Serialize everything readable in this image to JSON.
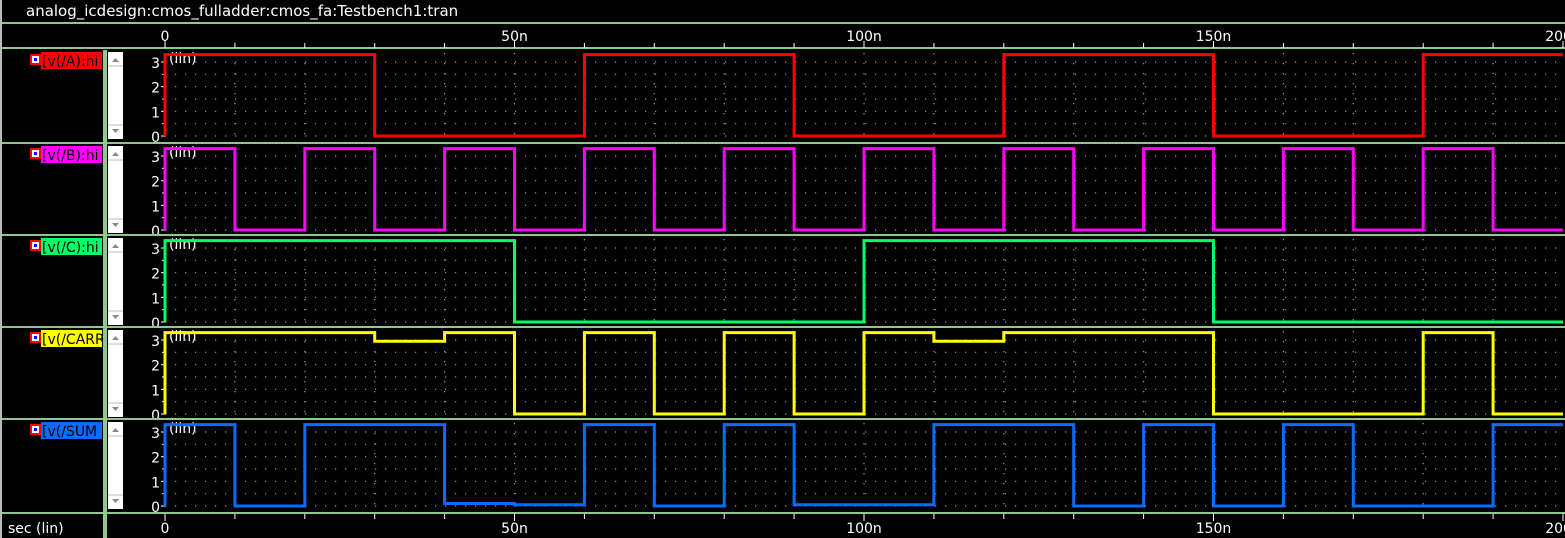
{
  "window": {
    "title": "analog_icdesign:cmos_fulladder:cmos_fa:Testbench1:tran"
  },
  "x_axis": {
    "label": "sec (lin)",
    "ticks": [
      "0",
      "50n",
      "100n",
      "150n",
      "200n"
    ]
  },
  "colors": {
    "divider": "#8fc78f",
    "grid": "#9a9a9a",
    "background": "#000000"
  },
  "chart_data": {
    "type": "line",
    "xlabel": "sec (lin)",
    "xlim": [
      0,
      200
    ],
    "x_unit": "ns",
    "x_ticks": [
      "0",
      "50n",
      "100n",
      "150n",
      "200n"
    ],
    "ylim": [
      0,
      3.3
    ],
    "y_ticks": [
      "0",
      "1",
      "2",
      "3"
    ],
    "y_scale_label": "(lin)",
    "grid": true,
    "series": [
      {
        "name": "v(/A):hi",
        "color": "#ff0000",
        "steps": [
          [
            0,
            3.3
          ],
          [
            30,
            0
          ],
          [
            60,
            3.3
          ],
          [
            90,
            0
          ],
          [
            120,
            3.3
          ],
          [
            150,
            0
          ],
          [
            180,
            3.3
          ],
          [
            200,
            3.3
          ]
        ]
      },
      {
        "name": "v(/B):hi",
        "color": "#ff00ff",
        "steps": [
          [
            0,
            3.3
          ],
          [
            10,
            0
          ],
          [
            20,
            3.3
          ],
          [
            30,
            0
          ],
          [
            40,
            3.3
          ],
          [
            50,
            0
          ],
          [
            60,
            3.3
          ],
          [
            70,
            0
          ],
          [
            80,
            3.3
          ],
          [
            90,
            0
          ],
          [
            100,
            3.3
          ],
          [
            110,
            0
          ],
          [
            120,
            3.3
          ],
          [
            130,
            0
          ],
          [
            140,
            3.3
          ],
          [
            150,
            0
          ],
          [
            160,
            3.3
          ],
          [
            170,
            0
          ],
          [
            180,
            3.3
          ],
          [
            190,
            0
          ],
          [
            200,
            0
          ]
        ]
      },
      {
        "name": "v(/C):hi",
        "color": "#00ff66",
        "steps": [
          [
            0,
            3.3
          ],
          [
            50,
            0
          ],
          [
            100,
            3.3
          ],
          [
            150,
            0
          ],
          [
            200,
            0
          ]
        ]
      },
      {
        "name": "v(/CARRY",
        "color": "#ffff00",
        "steps": [
          [
            0,
            3.3
          ],
          [
            30,
            2.95
          ],
          [
            40,
            3.3
          ],
          [
            50,
            0
          ],
          [
            60,
            3.3
          ],
          [
            70,
            0
          ],
          [
            80,
            3.3
          ],
          [
            90,
            0
          ],
          [
            100,
            3.3
          ],
          [
            110,
            2.95
          ],
          [
            120,
            3.3
          ],
          [
            150,
            0
          ],
          [
            180,
            3.3
          ],
          [
            190,
            0
          ],
          [
            200,
            0
          ]
        ]
      },
      {
        "name": "v(/SUM",
        "color": "#0a6cff",
        "steps": [
          [
            0,
            3.3
          ],
          [
            10,
            0
          ],
          [
            20,
            3.3
          ],
          [
            40,
            0.1
          ],
          [
            50,
            0.05
          ],
          [
            60,
            3.3
          ],
          [
            70,
            0
          ],
          [
            80,
            3.3
          ],
          [
            90,
            0.05
          ],
          [
            110,
            3.3
          ],
          [
            130,
            0
          ],
          [
            140,
            3.3
          ],
          [
            150,
            0
          ],
          [
            160,
            3.3
          ],
          [
            170,
            0
          ],
          [
            190,
            3.3
          ],
          [
            200,
            3.3
          ]
        ]
      }
    ]
  }
}
